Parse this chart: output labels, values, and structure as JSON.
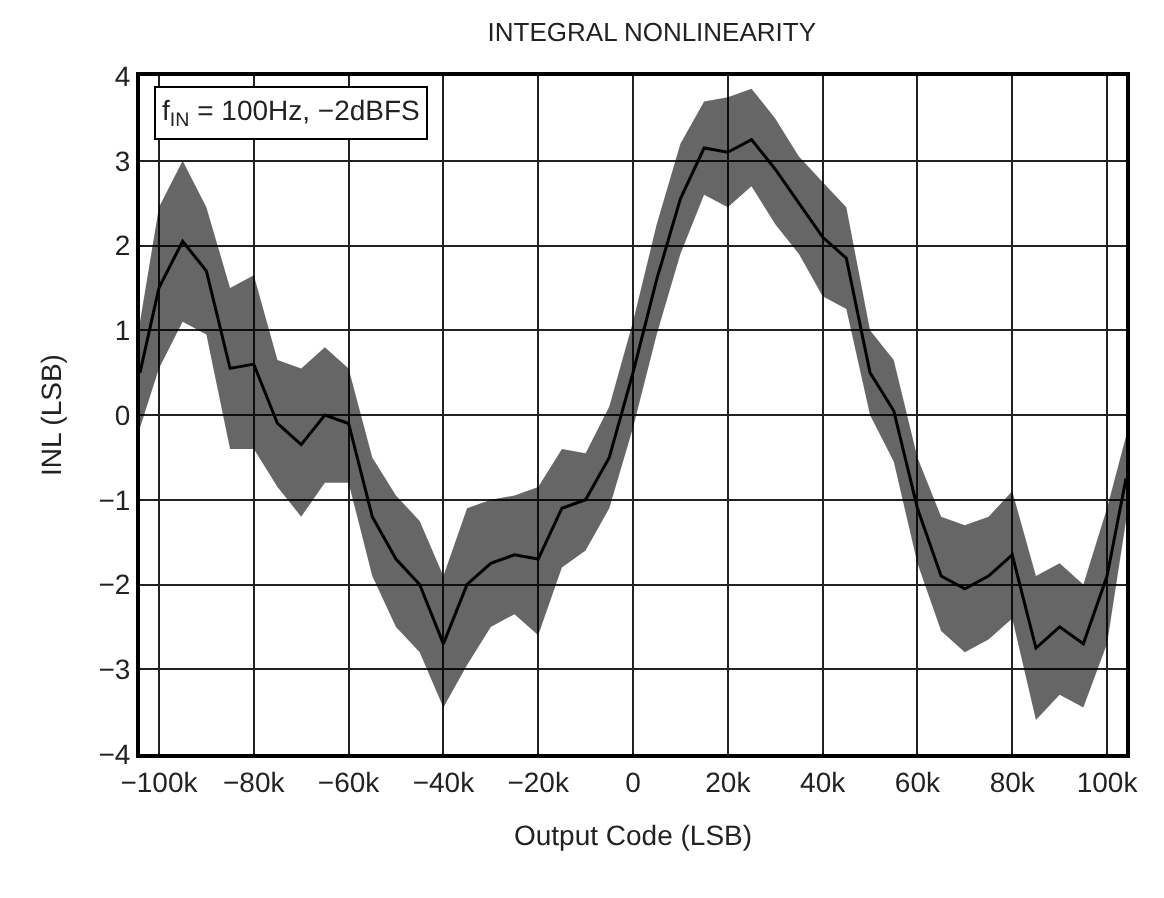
{
  "chart_data": {
    "type": "line",
    "title": "INTEGRAL NONLINEARITY",
    "xlabel": "Output Code (LSB)",
    "ylabel": "INL (LSB)",
    "annotations": [
      "f$_{IN}$ = 100Hz, −2dBFS"
    ],
    "x": [
      -104000,
      -100000,
      -95000,
      -90000,
      -85000,
      -80000,
      -75000,
      -70000,
      -65000,
      -60000,
      -55000,
      -50000,
      -45000,
      -40000,
      -35000,
      -30000,
      -25000,
      -20000,
      -15000,
      -10000,
      -5000,
      0,
      5000,
      10000,
      15000,
      20000,
      25000,
      30000,
      35000,
      40000,
      45000,
      50000,
      55000,
      60000,
      65000,
      70000,
      75000,
      80000,
      85000,
      90000,
      95000,
      100000,
      104000
    ],
    "series": [
      {
        "color": "#000000",
        "values": [
          0.5,
          1.5,
          2.05,
          1.7,
          0.55,
          0.6,
          -0.1,
          -0.35,
          0,
          -0.1,
          -1.2,
          -1.7,
          -2.0,
          -2.7,
          -2.0,
          -1.75,
          -1.65,
          -1.7,
          -1.1,
          -1.0,
          -0.5,
          0.5,
          1.6,
          2.55,
          3.15,
          3.1,
          3.25,
          2.9,
          2.5,
          2.1,
          1.85,
          0.5,
          0.05,
          -1.1,
          -1.9,
          -2.05,
          -1.9,
          -1.65,
          -2.75,
          -2.5,
          -2.7,
          -1.9,
          -0.75
        ],
        "lower": [
          -0.15,
          0.55,
          1.1,
          0.95,
          -0.4,
          -0.4,
          -0.85,
          -1.2,
          -0.8,
          -0.8,
          -1.9,
          -2.5,
          -2.8,
          -3.45,
          -2.95,
          -2.5,
          -2.35,
          -2.6,
          -1.8,
          -1.6,
          -1.1,
          -0.15,
          0.95,
          1.9,
          2.6,
          2.45,
          2.7,
          2.25,
          1.9,
          1.4,
          1.25,
          0,
          -0.55,
          -1.75,
          -2.55,
          -2.8,
          -2.65,
          -2.4,
          -3.6,
          -3.3,
          -3.45,
          -2.7,
          -1.25
        ],
        "upper": [
          1.1,
          2.45,
          3.0,
          2.45,
          1.5,
          1.65,
          0.65,
          0.55,
          0.8,
          0.55,
          -0.5,
          -0.95,
          -1.25,
          -1.9,
          -1.1,
          -1.0,
          -0.95,
          -0.85,
          -0.4,
          -0.45,
          0.1,
          1.1,
          2.25,
          3.2,
          3.7,
          3.75,
          3.85,
          3.5,
          3.05,
          2.75,
          2.45,
          1.0,
          0.65,
          -0.5,
          -1.2,
          -1.3,
          -1.2,
          -0.9,
          -1.9,
          -1.75,
          -2.0,
          -1.1,
          -0.25
        ]
      }
    ],
    "xlim": [
      -104000,
      104000
    ],
    "xticks": [
      {
        "value": -100000,
        "label": "−100k"
      },
      {
        "value": -80000,
        "label": "−80k"
      },
      {
        "value": -60000,
        "label": "−60k"
      },
      {
        "value": -40000,
        "label": "−40k"
      },
      {
        "value": -20000,
        "label": "−20k"
      },
      0,
      {
        "value": 20000,
        "label": "20k"
      },
      {
        "value": 40000,
        "label": "40k"
      },
      {
        "value": 60000,
        "label": "60k"
      },
      {
        "value": 80000,
        "label": "80k"
      },
      {
        "value": 100000,
        "label": "100k"
      }
    ],
    "ylim": [
      -4,
      4
    ],
    "yticks": [
      {
        "value": -4,
        "label": "−4"
      },
      {
        "value": -3,
        "label": "−3"
      },
      {
        "value": -2,
        "label": "−2"
      },
      {
        "value": -1,
        "label": "−1"
      },
      0,
      1,
      2,
      3,
      4
    ],
    "grid": true,
    "marker": "none",
    "line_style": "solid"
  }
}
